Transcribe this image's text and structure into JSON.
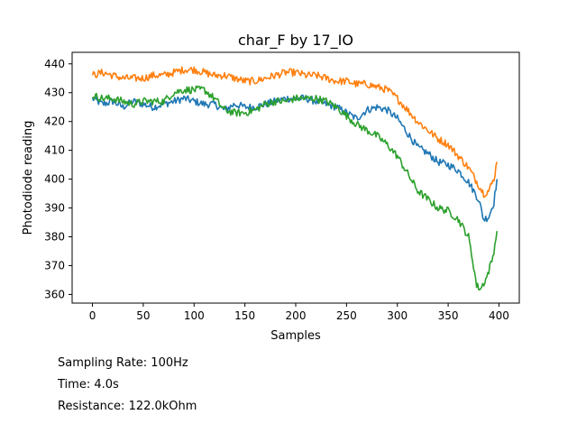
{
  "chart_data": {
    "type": "line",
    "title": "char_F by 17_IO",
    "xlabel": "Samples",
    "ylabel": "Photodiode reading",
    "xlim": [
      -20,
      420
    ],
    "ylim": [
      357,
      444
    ],
    "xticks": [
      0,
      50,
      100,
      150,
      200,
      250,
      300,
      350,
      400
    ],
    "yticks": [
      360,
      370,
      380,
      390,
      400,
      410,
      420,
      430,
      440
    ],
    "grid": false,
    "series": [
      {
        "color": "#1f77b4",
        "points": [
          [
            0,
            428
          ],
          [
            10,
            426
          ],
          [
            20,
            427
          ],
          [
            30,
            425
          ],
          [
            40,
            427
          ],
          [
            50,
            426
          ],
          [
            60,
            425
          ],
          [
            70,
            426
          ],
          [
            80,
            427
          ],
          [
            90,
            428
          ],
          [
            100,
            427
          ],
          [
            110,
            426
          ],
          [
            120,
            426
          ],
          [
            130,
            424
          ],
          [
            140,
            426
          ],
          [
            150,
            425
          ],
          [
            160,
            425
          ],
          [
            170,
            426
          ],
          [
            180,
            427
          ],
          [
            190,
            428
          ],
          [
            200,
            428
          ],
          [
            210,
            428
          ],
          [
            220,
            427
          ],
          [
            230,
            426
          ],
          [
            240,
            425
          ],
          [
            250,
            423
          ],
          [
            260,
            421
          ],
          [
            270,
            424
          ],
          [
            280,
            425
          ],
          [
            290,
            424
          ],
          [
            300,
            421
          ],
          [
            310,
            416
          ],
          [
            320,
            411
          ],
          [
            330,
            409
          ],
          [
            340,
            406
          ],
          [
            350,
            405
          ],
          [
            360,
            403
          ],
          [
            370,
            399
          ],
          [
            380,
            393
          ],
          [
            385,
            386
          ],
          [
            390,
            387
          ],
          [
            395,
            392
          ],
          [
            398,
            400
          ]
        ]
      },
      {
        "color": "#ff7f0e",
        "points": [
          [
            0,
            436
          ],
          [
            10,
            437
          ],
          [
            20,
            436
          ],
          [
            30,
            435
          ],
          [
            40,
            435
          ],
          [
            50,
            435
          ],
          [
            60,
            436
          ],
          [
            70,
            436
          ],
          [
            80,
            437
          ],
          [
            90,
            438
          ],
          [
            100,
            438
          ],
          [
            110,
            437
          ],
          [
            120,
            436
          ],
          [
            130,
            436
          ],
          [
            140,
            435
          ],
          [
            150,
            434
          ],
          [
            160,
            434
          ],
          [
            170,
            435
          ],
          [
            180,
            436
          ],
          [
            190,
            437
          ],
          [
            200,
            437
          ],
          [
            210,
            436
          ],
          [
            220,
            436
          ],
          [
            230,
            435
          ],
          [
            240,
            434
          ],
          [
            250,
            434
          ],
          [
            260,
            433
          ],
          [
            270,
            433
          ],
          [
            280,
            432
          ],
          [
            290,
            431
          ],
          [
            300,
            428
          ],
          [
            310,
            424
          ],
          [
            320,
            420
          ],
          [
            330,
            417
          ],
          [
            340,
            414
          ],
          [
            350,
            412
          ],
          [
            360,
            408
          ],
          [
            370,
            404
          ],
          [
            380,
            398
          ],
          [
            385,
            395
          ],
          [
            390,
            396
          ],
          [
            395,
            400
          ],
          [
            398,
            406
          ]
        ]
      },
      {
        "color": "#2ca02c",
        "points": [
          [
            0,
            429
          ],
          [
            10,
            428
          ],
          [
            20,
            428
          ],
          [
            30,
            427
          ],
          [
            40,
            426
          ],
          [
            50,
            427
          ],
          [
            60,
            427
          ],
          [
            70,
            427
          ],
          [
            80,
            430
          ],
          [
            90,
            431
          ],
          [
            100,
            431
          ],
          [
            110,
            431
          ],
          [
            120,
            428
          ],
          [
            130,
            424
          ],
          [
            140,
            423
          ],
          [
            150,
            423
          ],
          [
            160,
            424
          ],
          [
            170,
            426
          ],
          [
            180,
            427
          ],
          [
            190,
            427
          ],
          [
            200,
            428
          ],
          [
            210,
            428
          ],
          [
            220,
            428
          ],
          [
            230,
            427
          ],
          [
            240,
            425
          ],
          [
            250,
            422
          ],
          [
            260,
            419
          ],
          [
            270,
            417
          ],
          [
            280,
            415
          ],
          [
            290,
            412
          ],
          [
            300,
            408
          ],
          [
            310,
            402
          ],
          [
            320,
            396
          ],
          [
            330,
            393
          ],
          [
            340,
            390
          ],
          [
            350,
            389
          ],
          [
            360,
            386
          ],
          [
            370,
            380
          ],
          [
            375,
            370
          ],
          [
            378,
            363
          ],
          [
            382,
            362
          ],
          [
            388,
            366
          ],
          [
            394,
            373
          ],
          [
            398,
            382
          ]
        ]
      }
    ]
  },
  "notes": {
    "sampling_rate": "Sampling Rate: 100Hz",
    "time": "Time: 4.0s",
    "resistance": "Resistance: 122.0kOhm"
  }
}
